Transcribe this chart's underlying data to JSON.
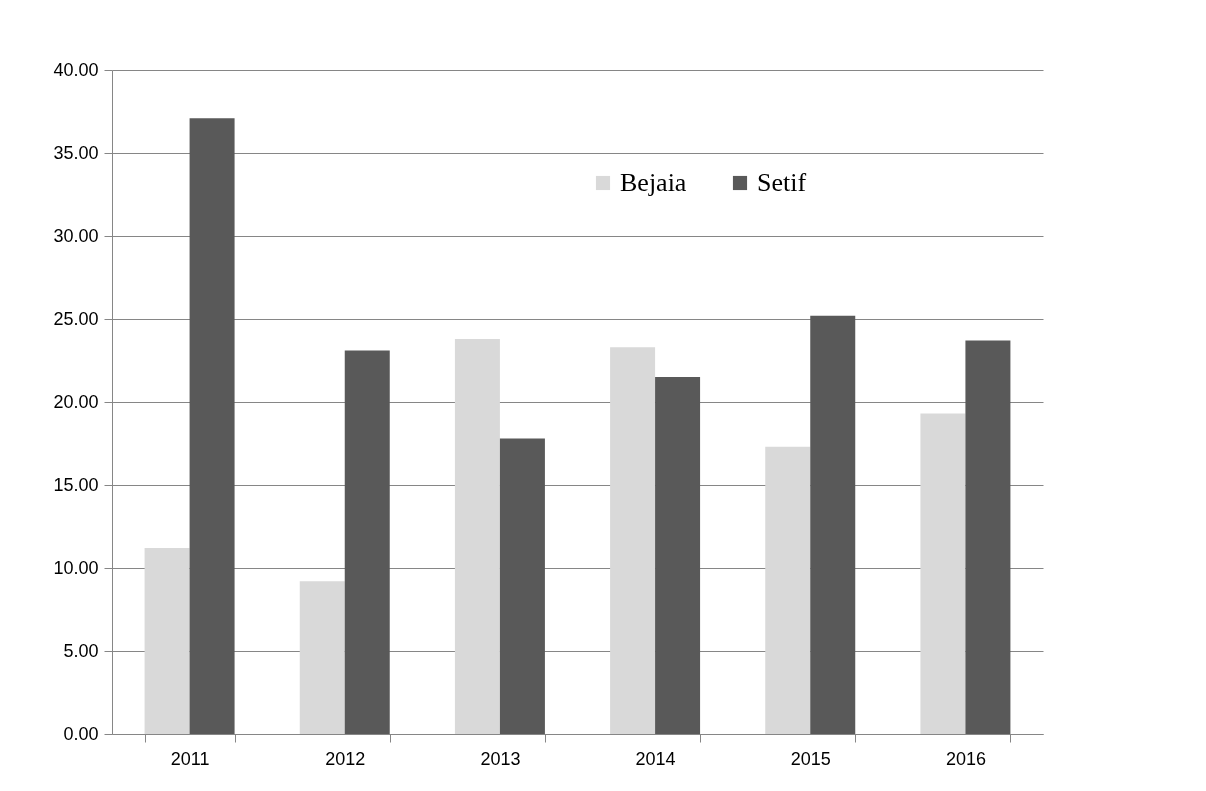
{
  "chart_data": {
    "type": "bar",
    "categories": [
      "2011",
      "2012",
      "2013",
      "2014",
      "2015",
      "2016"
    ],
    "series": [
      {
        "name": "Bejaia",
        "color": "#d9d9d9",
        "values": [
          11.2,
          9.2,
          23.8,
          23.3,
          17.3,
          19.3
        ]
      },
      {
        "name": "Setif",
        "color": "#595959",
        "values": [
          37.1,
          23.1,
          17.8,
          21.5,
          25.2,
          23.7
        ]
      }
    ],
    "ylim": [
      0,
      40
    ],
    "yticks": [
      {
        "value": 0,
        "label": "0.00"
      },
      {
        "value": 5,
        "label": "5.00"
      },
      {
        "value": 10,
        "label": "10.00"
      },
      {
        "value": 15,
        "label": "15.00"
      },
      {
        "value": 20,
        "label": "20.00"
      },
      {
        "value": 25,
        "label": "25.00"
      },
      {
        "value": 30,
        "label": "30.00"
      },
      {
        "value": 35,
        "label": "35.00"
      },
      {
        "value": 40,
        "label": "40.00"
      }
    ],
    "grid": "y",
    "legend": "top"
  }
}
